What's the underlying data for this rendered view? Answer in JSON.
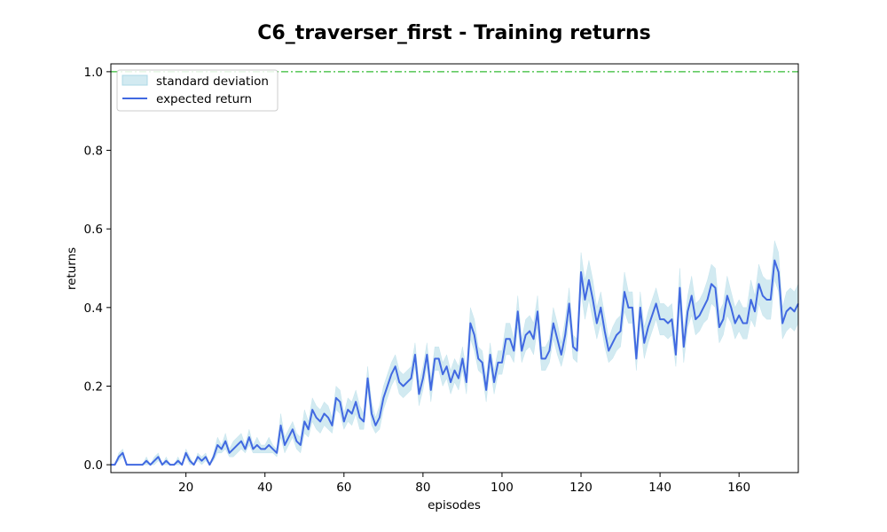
{
  "chart_data": {
    "type": "line",
    "title": "C6_traverser_first - Training returns",
    "xlabel": "episodes",
    "ylabel": "returns",
    "xlim": [
      1,
      175
    ],
    "ylim": [
      -0.02,
      1.02
    ],
    "xticks": [
      20,
      40,
      60,
      80,
      100,
      120,
      140,
      160
    ],
    "yticks": [
      0.0,
      0.2,
      0.4,
      0.6,
      0.8,
      1.0
    ],
    "xtick_labels": [
      "20",
      "40",
      "60",
      "80",
      "100",
      "120",
      "140",
      "160"
    ],
    "ytick_labels": [
      "0.0",
      "0.2",
      "0.4",
      "0.6",
      "0.8",
      "1.0"
    ],
    "grid": false,
    "legend_position": "top-left",
    "legend": {
      "std_label": "standard deviation",
      "mean_label": "expected return"
    },
    "reference_line": {
      "y": 1.0,
      "style": "dash-dot",
      "color": "#33bb33"
    },
    "colors": {
      "line": "#4169e1",
      "band": "#add8e6"
    },
    "series": [
      {
        "name": "expected return",
        "x_start": 1,
        "values": [
          0.0,
          0.0,
          0.02,
          0.03,
          0.0,
          0.0,
          0.0,
          0.0,
          0.0,
          0.01,
          0.0,
          0.01,
          0.02,
          0.0,
          0.01,
          0.0,
          0.0,
          0.01,
          0.0,
          0.03,
          0.01,
          0.0,
          0.02,
          0.01,
          0.02,
          0.0,
          0.02,
          0.05,
          0.04,
          0.06,
          0.03,
          0.04,
          0.05,
          0.06,
          0.04,
          0.07,
          0.04,
          0.05,
          0.04,
          0.04,
          0.05,
          0.04,
          0.03,
          0.1,
          0.05,
          0.07,
          0.09,
          0.06,
          0.05,
          0.11,
          0.09,
          0.14,
          0.12,
          0.11,
          0.13,
          0.12,
          0.1,
          0.17,
          0.16,
          0.11,
          0.14,
          0.13,
          0.16,
          0.12,
          0.11,
          0.22,
          0.13,
          0.1,
          0.12,
          0.17,
          0.2,
          0.23,
          0.25,
          0.21,
          0.2,
          0.21,
          0.22,
          0.28,
          0.18,
          0.22,
          0.28,
          0.19,
          0.27,
          0.27,
          0.23,
          0.25,
          0.21,
          0.24,
          0.22,
          0.27,
          0.21,
          0.36,
          0.33,
          0.27,
          0.26,
          0.19,
          0.28,
          0.21,
          0.26,
          0.26,
          0.32,
          0.32,
          0.29,
          0.39,
          0.29,
          0.33,
          0.34,
          0.32,
          0.39,
          0.27,
          0.27,
          0.29,
          0.36,
          0.32,
          0.28,
          0.33,
          0.41,
          0.3,
          0.29,
          0.49,
          0.42,
          0.47,
          0.42,
          0.36,
          0.4,
          0.34,
          0.29,
          0.31,
          0.33,
          0.34,
          0.44,
          0.4,
          0.4,
          0.27,
          0.4,
          0.31,
          0.35,
          0.38,
          0.41,
          0.37,
          0.37,
          0.36,
          0.37,
          0.28,
          0.45,
          0.3,
          0.39,
          0.43,
          0.37,
          0.38,
          0.4,
          0.42,
          0.46,
          0.45,
          0.35,
          0.37,
          0.43,
          0.4,
          0.36,
          0.38,
          0.36,
          0.36,
          0.42,
          0.39,
          0.46,
          0.43,
          0.42,
          0.42,
          0.52,
          0.49,
          0.36,
          0.39,
          0.4,
          0.39,
          0.41
        ]
      }
    ],
    "std_band": {
      "name": "standard deviation",
      "half_width": [
        0.0,
        0.0,
        0.01,
        0.01,
        0.0,
        0.0,
        0.0,
        0.0,
        0.0,
        0.01,
        0.0,
        0.01,
        0.01,
        0.0,
        0.01,
        0.0,
        0.0,
        0.01,
        0.0,
        0.01,
        0.01,
        0.0,
        0.01,
        0.01,
        0.01,
        0.0,
        0.01,
        0.02,
        0.01,
        0.02,
        0.01,
        0.02,
        0.02,
        0.02,
        0.01,
        0.02,
        0.01,
        0.02,
        0.01,
        0.01,
        0.02,
        0.01,
        0.01,
        0.03,
        0.02,
        0.02,
        0.02,
        0.02,
        0.02,
        0.03,
        0.02,
        0.03,
        0.03,
        0.03,
        0.03,
        0.03,
        0.02,
        0.03,
        0.03,
        0.02,
        0.03,
        0.03,
        0.03,
        0.03,
        0.02,
        0.03,
        0.03,
        0.02,
        0.03,
        0.03,
        0.03,
        0.03,
        0.03,
        0.03,
        0.03,
        0.03,
        0.03,
        0.03,
        0.03,
        0.03,
        0.03,
        0.03,
        0.03,
        0.03,
        0.03,
        0.03,
        0.03,
        0.03,
        0.03,
        0.03,
        0.03,
        0.04,
        0.04,
        0.03,
        0.03,
        0.03,
        0.03,
        0.03,
        0.03,
        0.03,
        0.04,
        0.04,
        0.03,
        0.04,
        0.03,
        0.04,
        0.04,
        0.04,
        0.04,
        0.03,
        0.03,
        0.03,
        0.04,
        0.04,
        0.03,
        0.04,
        0.04,
        0.03,
        0.03,
        0.05,
        0.05,
        0.05,
        0.05,
        0.04,
        0.04,
        0.04,
        0.03,
        0.04,
        0.04,
        0.04,
        0.05,
        0.04,
        0.04,
        0.03,
        0.04,
        0.04,
        0.04,
        0.04,
        0.04,
        0.04,
        0.04,
        0.04,
        0.04,
        0.03,
        0.05,
        0.04,
        0.04,
        0.05,
        0.04,
        0.04,
        0.04,
        0.05,
        0.05,
        0.05,
        0.04,
        0.04,
        0.05,
        0.04,
        0.04,
        0.04,
        0.04,
        0.04,
        0.05,
        0.04,
        0.05,
        0.05,
        0.05,
        0.05,
        0.05,
        0.05,
        0.04,
        0.05,
        0.05,
        0.05,
        0.05
      ]
    }
  }
}
